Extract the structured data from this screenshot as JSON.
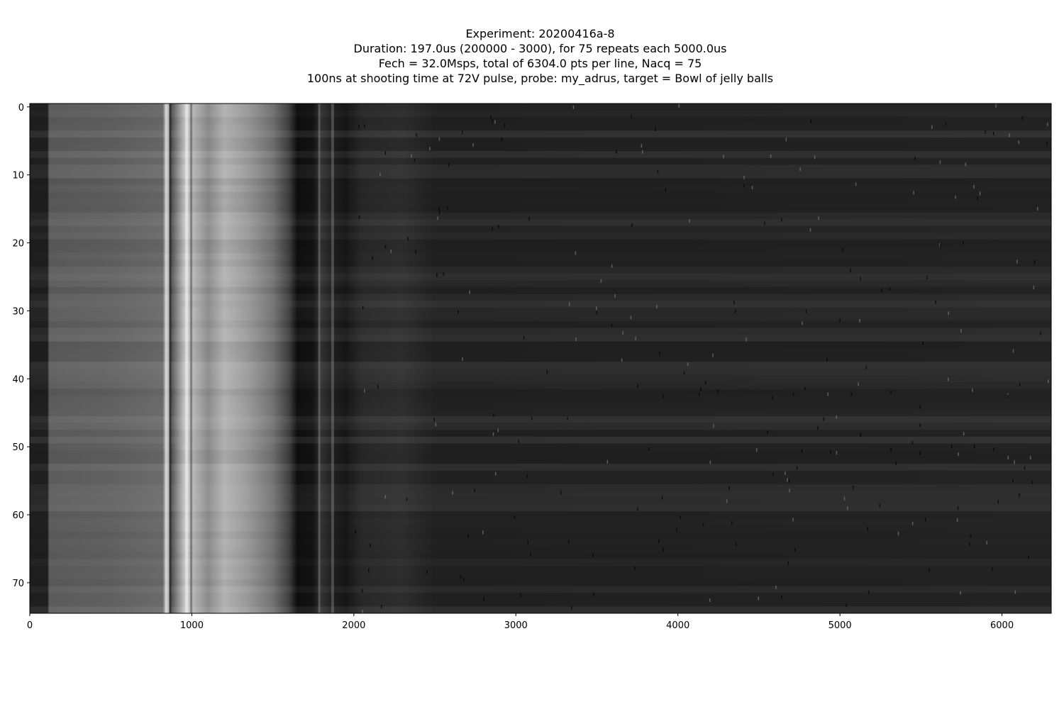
{
  "chart_data": {
    "type": "heatmap",
    "title_lines": [
      "Experiment: 20200416a-8",
      "Duration: 197.0us (200000 - 3000), for 75 repeats each 5000.0us",
      "Fech = 32.0Msps, total of 6304.0 pts per line, Nacq = 75",
      "100ns at shooting time at 72V pulse, probe: my_adrus, target = Bowl of jelly balls"
    ],
    "xlabel": "",
    "ylabel": "",
    "xlim": [
      0,
      6304
    ],
    "ylim": [
      74.5,
      -0.5
    ],
    "x_ticks": [
      0,
      1000,
      2000,
      3000,
      4000,
      5000,
      6000
    ],
    "y_ticks": [
      0,
      10,
      20,
      30,
      40,
      50,
      60,
      70
    ],
    "x_tick_labels": [
      "0",
      "1000",
      "2000",
      "3000",
      "4000",
      "5000",
      "6000"
    ],
    "y_tick_labels": [
      "0",
      "10",
      "20",
      "30",
      "40",
      "50",
      "60",
      "70"
    ],
    "colormap": "gray",
    "rows": 75,
    "samples_per_row": 6304,
    "column_profile": [
      {
        "x": 0,
        "v": 0.12
      },
      {
        "x": 110,
        "v": 0.12
      },
      {
        "x": 120,
        "v": 0.36
      },
      {
        "x": 500,
        "v": 0.38
      },
      {
        "x": 820,
        "v": 0.42
      },
      {
        "x": 840,
        "v": 0.75
      },
      {
        "x": 870,
        "v": 0.3
      },
      {
        "x": 960,
        "v": 0.8
      },
      {
        "x": 1100,
        "v": 0.55
      },
      {
        "x": 1200,
        "v": 0.7
      },
      {
        "x": 1350,
        "v": 0.6
      },
      {
        "x": 1500,
        "v": 0.45
      },
      {
        "x": 1600,
        "v": 0.25
      },
      {
        "x": 1650,
        "v": 0.06
      },
      {
        "x": 1750,
        "v": 0.08
      },
      {
        "x": 1800,
        "v": 0.2
      },
      {
        "x": 1870,
        "v": 0.12
      },
      {
        "x": 1950,
        "v": 0.09
      },
      {
        "x": 2050,
        "v": 0.16
      },
      {
        "x": 2300,
        "v": 0.18
      },
      {
        "x": 2500,
        "v": 0.13
      },
      {
        "x": 6304,
        "v": 0.14
      }
    ],
    "bright_rows": [
      4,
      29,
      49
    ],
    "grid": false,
    "legend": "none"
  }
}
